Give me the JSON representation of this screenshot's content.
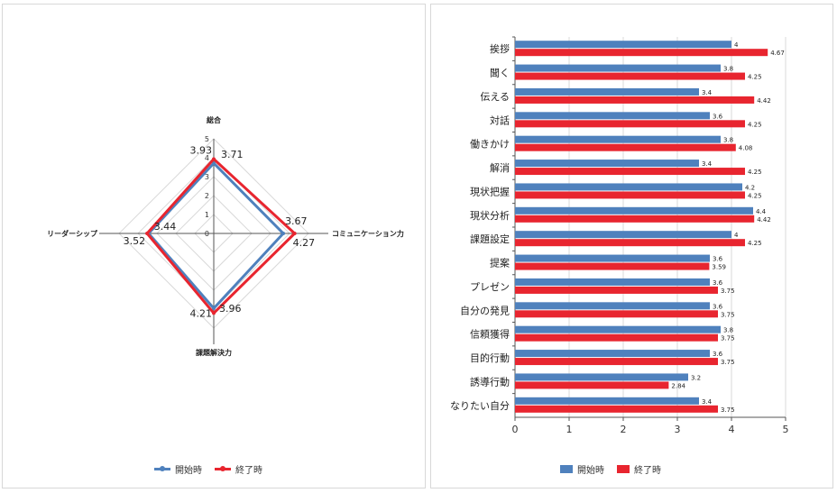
{
  "chart_data": [
    {
      "type": "radar",
      "axes": [
        "総合",
        "コミュニケーション力",
        "課題解決力",
        "リーダーシップ"
      ],
      "r_ticks": [
        "0",
        "1",
        "2",
        "3",
        "4",
        "5"
      ],
      "rlim": [
        0,
        5
      ],
      "series": [
        {
          "name": "開始時",
          "values": [
            3.71,
            3.67,
            3.96,
            3.44
          ]
        },
        {
          "name": "終了時",
          "values": [
            3.93,
            4.27,
            4.21,
            3.52
          ]
        }
      ],
      "grid": true,
      "legend": "bottom"
    },
    {
      "type": "bar",
      "orientation": "horizontal",
      "categories": [
        "挨拶",
        "聞く",
        "伝える",
        "対話",
        "働きかけ",
        "解消",
        "現状把握",
        "現状分析",
        "課題設定",
        "提案",
        "プレゼン",
        "自分の発見",
        "信頼獲得",
        "目的行動",
        "誘導行動",
        "なりたい自分"
      ],
      "series": [
        {
          "name": "開始時",
          "values": [
            4,
            3.8,
            3.4,
            3.6,
            3.8,
            3.4,
            4.2,
            4.4,
            4,
            3.6,
            3.6,
            3.6,
            3.8,
            3.6,
            3.2,
            3.4
          ]
        },
        {
          "name": "終了時",
          "values": [
            4.67,
            4.25,
            4.42,
            4.25,
            4.08,
            4.25,
            4.25,
            4.42,
            4.25,
            3.59,
            3.75,
            3.75,
            3.75,
            3.75,
            2.84,
            3.75
          ]
        }
      ],
      "x_ticks": [
        "0",
        "1",
        "2",
        "3",
        "4",
        "5"
      ],
      "xlim": [
        0,
        5
      ],
      "grid": true,
      "legend": "bottom"
    }
  ],
  "colors": {
    "start": "#4f81bd",
    "end": "#e8252f",
    "grid": "#d9d9d9",
    "axis": "#555555"
  }
}
